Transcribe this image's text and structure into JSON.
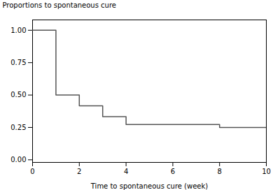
{
  "chart_data": {
    "type": "line",
    "xlabel": "Time to spontaneous cure (week)",
    "ylabel": "Proportions to spontaneous cure",
    "x": [
      0,
      1,
      1,
      2,
      2,
      3,
      3,
      4,
      4,
      8,
      8,
      10
    ],
    "values": [
      1.0,
      1.0,
      0.5,
      0.5,
      0.4167,
      0.4167,
      0.3333,
      0.3333,
      0.2727,
      0.2727,
      0.25,
      0.25
    ],
    "color": "#555555",
    "xlim": [
      0,
      10
    ],
    "ylim": [
      -0.02,
      1.08
    ],
    "xticks": [
      0,
      2,
      4,
      6,
      8,
      10
    ],
    "yticks": [
      {
        "value": 0,
        "label": "0.00"
      },
      {
        "value": 0.25,
        "label": "0.25"
      },
      {
        "value": 0.5,
        "label": "0.50"
      },
      {
        "value": 0.75,
        "label": "0.75"
      },
      {
        "value": 1,
        "label": "1.00"
      }
    ]
  }
}
